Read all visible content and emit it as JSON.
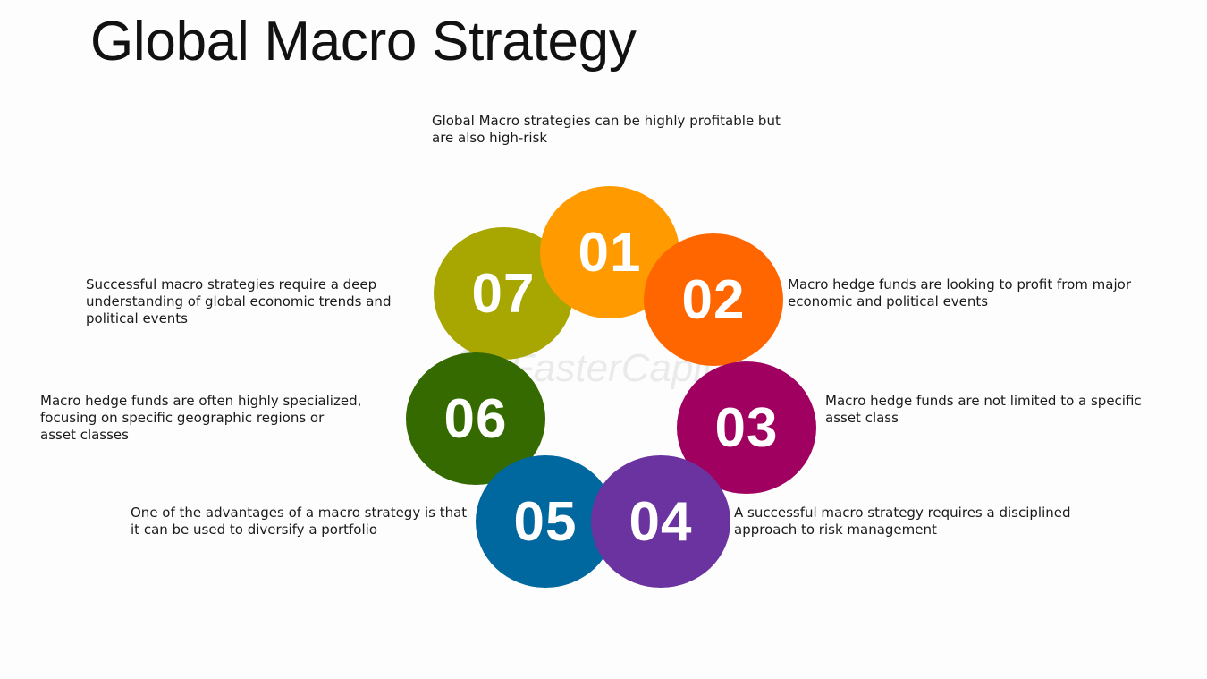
{
  "title": "Global Macro Strategy",
  "watermark": "FasterCapital",
  "steps": [
    {
      "number": "01",
      "color": "#FF9A00",
      "text": "Global Macro strategies can be highly profitable but are also high-risk"
    },
    {
      "number": "02",
      "color": "#FF6600",
      "text": "Macro hedge funds are looking to profit from major economic and political events"
    },
    {
      "number": "03",
      "color": "#A0005F",
      "text": "Macro hedge funds are not limited to a specific asset class"
    },
    {
      "number": "04",
      "color": "#6A33A0",
      "text": "A successful macro strategy requires a disciplined approach to risk management"
    },
    {
      "number": "05",
      "color": "#00679F",
      "text": "One of the advantages of a macro strategy is that it can be used to diversify a portfolio"
    },
    {
      "number": "06",
      "color": "#356A00",
      "text": "Macro hedge funds are often highly specialized, focusing on specific geographic regions or asset classes"
    },
    {
      "number": "07",
      "color": "#A8A600",
      "text": "Successful macro strategies require a deep understanding of global economic trends and political events"
    }
  ]
}
